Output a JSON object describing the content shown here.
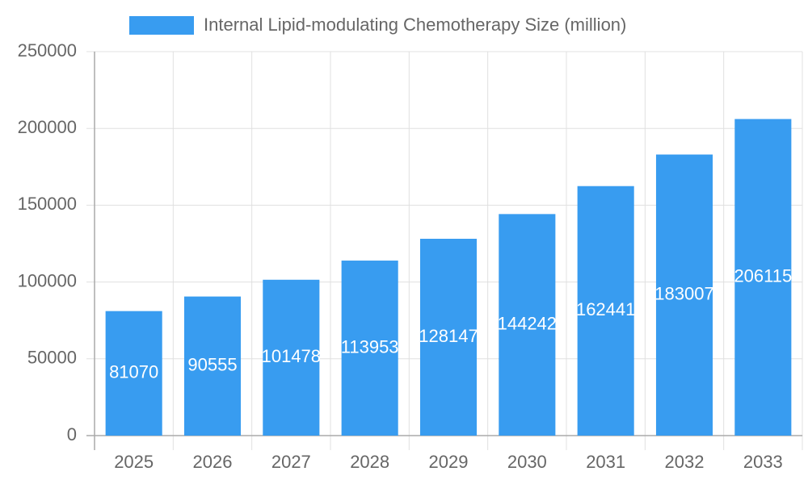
{
  "chart_data": {
    "type": "bar",
    "legend": "Internal Lipid-modulating Chemotherapy Size (million)",
    "categories": [
      "2025",
      "2026",
      "2027",
      "2028",
      "2029",
      "2030",
      "2031",
      "2032",
      "2033"
    ],
    "values": [
      81070,
      90555,
      101478,
      113953,
      128147,
      144242,
      162441,
      183007,
      206115
    ],
    "color": "#389cf0",
    "ylim": [
      0,
      250000
    ],
    "yticks": [
      0,
      50000,
      100000,
      150000,
      200000,
      250000
    ],
    "grid": true
  }
}
